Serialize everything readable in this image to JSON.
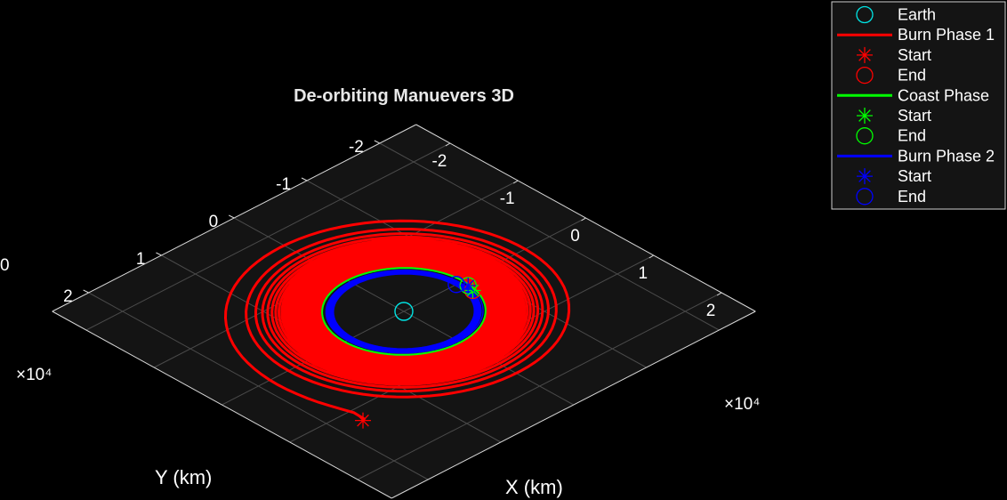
{
  "chart_data": {
    "type": "line",
    "projection": "3d",
    "title": "De-orbiting Manuevers 3D",
    "xlabel": "X (km)",
    "ylabel": "Y (km)",
    "x_exponent_label": "×10⁴",
    "y_exponent_label": "×10⁴",
    "xlim": [
      -2.5,
      2.5
    ],
    "ylim": [
      -2.5,
      2.5
    ],
    "x_ticks": [
      "-2",
      "-1",
      "0",
      "1",
      "2"
    ],
    "y_ticks": [
      "-2",
      "-1",
      "0",
      "1",
      "2"
    ],
    "z_tick_visible": "0",
    "grid": true,
    "legend_position": "top-right",
    "background": "#000000",
    "plot_area_color": "#141414",
    "earth": {
      "name": "Earth",
      "x": 0,
      "y": 0,
      "radius": 6378,
      "color": "#00e5e5"
    },
    "series": [
      {
        "name": "Burn Phase 1",
        "color": "#ff0000",
        "spiral": {
          "semi_major_start": 21000,
          "semi_major_end": 8400,
          "revolutions": 40
        },
        "start": {
          "label": "Start",
          "x": 12200,
          "y": 17000
        },
        "end": {
          "label": "End",
          "x": 2000,
          "y": -7600
        }
      },
      {
        "name": "Coast Phase",
        "color": "#00ff00",
        "semi_major": 8300,
        "start": {
          "label": "Start",
          "x": 2000,
          "y": -7600
        },
        "end": {
          "label": "End",
          "x": 1000,
          "y": -7900
        }
      },
      {
        "name": "Burn Phase 2",
        "color": "#0000ff",
        "spiral": {
          "semi_major_start": 8200,
          "semi_major_end": 7150,
          "revolutions": 30
        },
        "start": {
          "label": "Start",
          "x": 1000,
          "y": -7900
        },
        "end": {
          "label": "End",
          "x": 0,
          "y": -7200
        }
      }
    ]
  },
  "legend": {
    "items": [
      {
        "label": "Earth",
        "kind": "circle",
        "color": "#00e5e5"
      },
      {
        "label": "Burn Phase 1",
        "kind": "line",
        "color": "#ff0000"
      },
      {
        "label": "Start",
        "kind": "star",
        "color": "#ff0000"
      },
      {
        "label": "End",
        "kind": "circle",
        "color": "#ff0000"
      },
      {
        "label": "Coast Phase",
        "kind": "line",
        "color": "#00ff00"
      },
      {
        "label": "Start",
        "kind": "star",
        "color": "#00ff00"
      },
      {
        "label": "End",
        "kind": "circle",
        "color": "#00ff00"
      },
      {
        "label": "Burn Phase 2",
        "kind": "line",
        "color": "#0000ff"
      },
      {
        "label": "Start",
        "kind": "star",
        "color": "#0000ff"
      },
      {
        "label": "End",
        "kind": "circle",
        "color": "#0000ff"
      }
    ]
  }
}
